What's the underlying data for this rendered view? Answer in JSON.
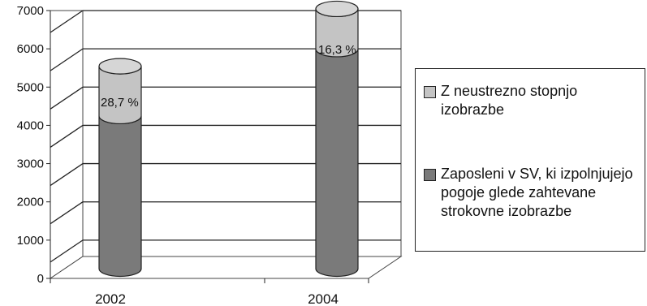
{
  "chart_data": {
    "type": "bar",
    "categories": [
      "2002",
      "2004"
    ],
    "series": [
      {
        "name": "Zaposleni v SV, ki izpolnjujejo pogoje glede zahtevane strokovne izobrazbe",
        "values": [
          4350,
          6100
        ],
        "color": "#7a7a7a"
      },
      {
        "name": "Z neustrezno stopnjo izobrazbe",
        "values": [
          1300,
          1050
        ],
        "color": "#c4c4c4",
        "data_labels": [
          "28,7 %",
          "16,3 %"
        ]
      }
    ],
    "yticks": [
      "0",
      "1000",
      "2000",
      "3000",
      "4000",
      "5000",
      "6000",
      "7000"
    ],
    "ylim": [
      0,
      7000
    ],
    "grid": true,
    "legend_position": "right"
  }
}
